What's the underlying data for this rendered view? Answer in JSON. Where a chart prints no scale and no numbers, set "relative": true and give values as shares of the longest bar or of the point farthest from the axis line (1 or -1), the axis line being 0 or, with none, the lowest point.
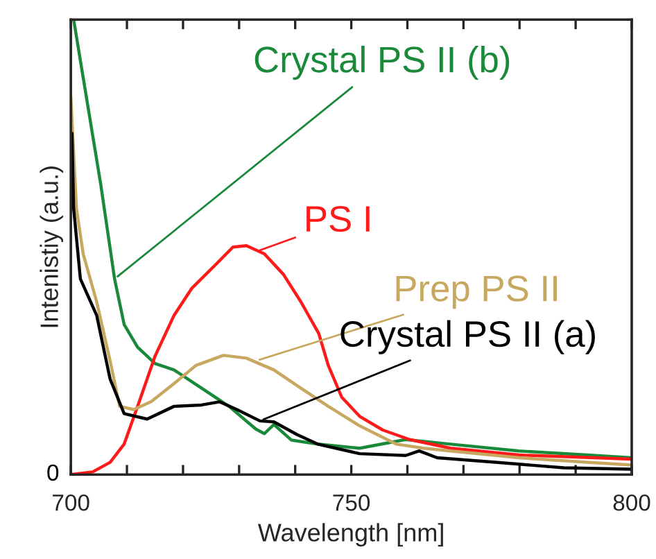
{
  "chart_data": {
    "type": "line",
    "relative": true,
    "xlabel": "Wavelength [nm]",
    "ylabel": "Intenistiy (a.u.)",
    "xlim": [
      700,
      800
    ],
    "xticks": [
      700,
      {
        "value": 710,
        "label": null
      },
      {
        "value": 720,
        "label": null
      },
      {
        "value": 730,
        "label": null
      },
      {
        "value": 740,
        "label": null
      },
      750,
      {
        "value": 760,
        "label": null
      },
      {
        "value": 770,
        "label": null
      },
      {
        "value": 780,
        "label": null
      },
      {
        "value": 790,
        "label": null
      },
      800
    ],
    "grid": false,
    "legend": false,
    "marker": "none",
    "line_style": "solid",
    "series": [
      {
        "color": "#1a8a3a",
        "x": [
          700.5,
          702.9,
          705.3,
          707.8,
          709.5,
          711.9,
          715,
          718.4,
          723.3,
          728.2,
          733,
          734.5,
          736.2,
          739.3,
          744,
          751.5,
          759.7,
          767.7,
          779.9,
          792,
          800
        ],
        "values": [
          1.0,
          0.82,
          0.64,
          0.43,
          0.33,
          0.28,
          0.244,
          0.23,
          0.19,
          0.15,
          0.1,
          0.09,
          0.11,
          0.076,
          0.067,
          0.058,
          0.077,
          0.067,
          0.052,
          0.043,
          0.037
        ]
      },
      {
        "color": "#ff1a1a",
        "x": [
          700,
          703.9,
          707,
          709.5,
          711.9,
          715,
          718.4,
          721.6,
          725.7,
          728.9,
          731.3,
          734.5,
          737.9,
          741,
          744.2,
          745.9,
          748.3,
          751.5,
          755.6,
          760.4,
          767.7,
          779.9,
          800
        ],
        "values": [
          0,
          0.006,
          0.027,
          0.067,
          0.15,
          0.26,
          0.35,
          0.41,
          0.46,
          0.5,
          0.503,
          0.485,
          0.44,
          0.38,
          0.31,
          0.24,
          0.17,
          0.128,
          0.098,
          0.077,
          0.058,
          0.043,
          0.034
        ]
      },
      {
        "color": "#c8a860",
        "x": [
          700,
          701,
          702.2,
          704.6,
          707,
          708.7,
          711.2,
          714.3,
          718.4,
          722.3,
          727.2,
          731.3,
          736.2,
          741,
          745.9,
          751.5,
          758,
          762.9,
          767.7,
          779.9,
          792,
          800
        ],
        "values": [
          0.83,
          0.585,
          0.485,
          0.38,
          0.25,
          0.15,
          0.143,
          0.16,
          0.2,
          0.24,
          0.262,
          0.256,
          0.23,
          0.19,
          0.15,
          0.107,
          0.067,
          0.058,
          0.052,
          0.037,
          0.027,
          0.021
        ]
      },
      {
        "color": "#000000",
        "x": [
          700.2,
          700.5,
          701.7,
          704.6,
          707,
          709.5,
          713.6,
          718.4,
          723.3,
          726.5,
          729.6,
          733.7,
          736.2,
          740.3,
          744,
          751.5,
          759.7,
          762.1,
          765.3,
          775.7,
          787.9,
          800
        ],
        "values": [
          0.75,
          0.585,
          0.43,
          0.35,
          0.21,
          0.134,
          0.122,
          0.15,
          0.153,
          0.16,
          0.143,
          0.118,
          0.116,
          0.088,
          0.067,
          0.046,
          0.042,
          0.052,
          0.037,
          0.027,
          0.015,
          0.012
        ]
      }
    ],
    "annotations": [
      {
        "text": "Crystal PS II (b)",
        "x": 707.8,
        "y": 0.43
      },
      {
        "text": "PS I",
        "x": 733,
        "y": 0.49
      },
      {
        "text": "Prep PS II",
        "x": 733,
        "y": 0.25
      },
      {
        "text": "Crystal PS II (a)",
        "x": 733.7,
        "y": 0.118
      },
      {
        "text": "0",
        "x": 700,
        "y": 0
      }
    ]
  }
}
